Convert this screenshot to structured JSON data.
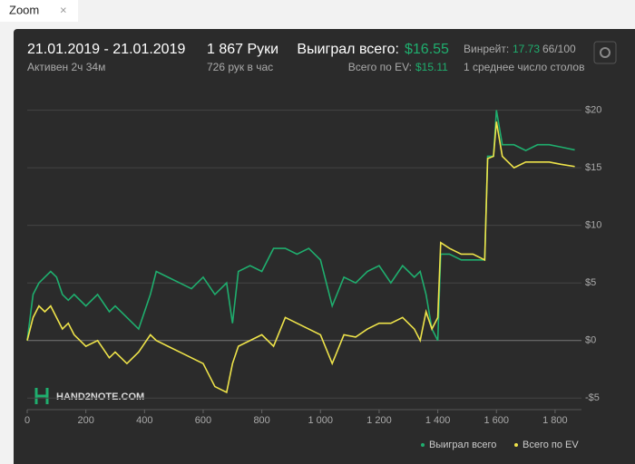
{
  "tab": {
    "label": "Zoom"
  },
  "header": {
    "dates": "21.01.2019 - 21.01.2019",
    "active": "Активен 2ч 34м",
    "hands": "1 867 Руки",
    "per_hour": "726 рук в час",
    "won_label": "Выиграл всего:",
    "won_value": "$16.55",
    "ev_label": "Всего по EV:",
    "ev_value": "$15.11",
    "winrate_label": "Винрейт:",
    "winrate_value": "17.73",
    "winrate_unit": "66/100",
    "tables": "1 среднее число столов"
  },
  "logo": "HAND2NOTE.COM",
  "chart_data": {
    "type": "line",
    "x": [
      0,
      20,
      40,
      60,
      80,
      100,
      120,
      140,
      160,
      200,
      240,
      280,
      300,
      340,
      380,
      420,
      440,
      480,
      520,
      560,
      600,
      640,
      680,
      700,
      720,
      760,
      800,
      840,
      880,
      920,
      960,
      1000,
      1040,
      1080,
      1120,
      1160,
      1200,
      1240,
      1280,
      1320,
      1340,
      1360,
      1380,
      1400,
      1410,
      1440,
      1480,
      1520,
      1560,
      1570,
      1590,
      1600,
      1620,
      1660,
      1700,
      1740,
      1780,
      1820,
      1867
    ],
    "series": [
      {
        "name": "Выиграл всего",
        "color": "#1fae6e",
        "values": [
          0,
          4,
          5,
          5.5,
          6,
          5.5,
          4,
          3.5,
          4,
          3,
          4,
          2.5,
          3,
          2,
          1,
          4,
          6,
          5.5,
          5,
          4.5,
          5.5,
          4,
          5,
          1.5,
          6,
          6.5,
          6,
          8,
          8,
          7.5,
          8,
          7,
          3,
          5.5,
          5,
          6,
          6.5,
          5,
          6.5,
          5.5,
          6,
          4,
          1,
          0,
          7.5,
          7.5,
          7,
          7,
          7,
          16,
          16,
          20,
          17,
          17,
          16.5,
          17,
          17,
          16.8,
          16.55
        ]
      },
      {
        "name": "Всего по EV",
        "color": "#eee34a",
        "values": [
          0,
          2,
          3,
          2.5,
          3,
          2,
          1,
          1.5,
          0.5,
          -0.5,
          0,
          -1.5,
          -1,
          -2,
          -1,
          0.5,
          0,
          -0.5,
          -1,
          -1.5,
          -2,
          -4,
          -4.5,
          -2,
          -0.5,
          0,
          0.5,
          -0.5,
          2,
          1.5,
          1,
          0.5,
          -2,
          0.5,
          0.3,
          1,
          1.5,
          1.5,
          2,
          1,
          0,
          2.5,
          1,
          2,
          8.5,
          8,
          7.5,
          7.5,
          7,
          15.8,
          16,
          19,
          16,
          15,
          15.5,
          15.5,
          15.5,
          15.3,
          15.11
        ]
      }
    ],
    "xlim": [
      0,
      1890
    ],
    "ylim": [
      -6,
      21.7
    ],
    "xticks": [
      0,
      200,
      400,
      600,
      800,
      {
        "value": 1000,
        "label": "1 000"
      },
      {
        "value": 1200,
        "label": "1 200"
      },
      {
        "value": 1400,
        "label": "1 400"
      },
      {
        "value": 1600,
        "label": "1 600"
      },
      {
        "value": 1800,
        "label": "1 800"
      }
    ],
    "yticks": [
      {
        "value": -5,
        "label": "-$5"
      },
      {
        "value": 0,
        "label": "$0"
      },
      {
        "value": 5,
        "label": "$5"
      },
      {
        "value": 10,
        "label": "$10"
      },
      {
        "value": 15,
        "label": "$15"
      },
      {
        "value": 20,
        "label": "$20"
      }
    ],
    "grid": true,
    "legend": "bottom-right"
  }
}
